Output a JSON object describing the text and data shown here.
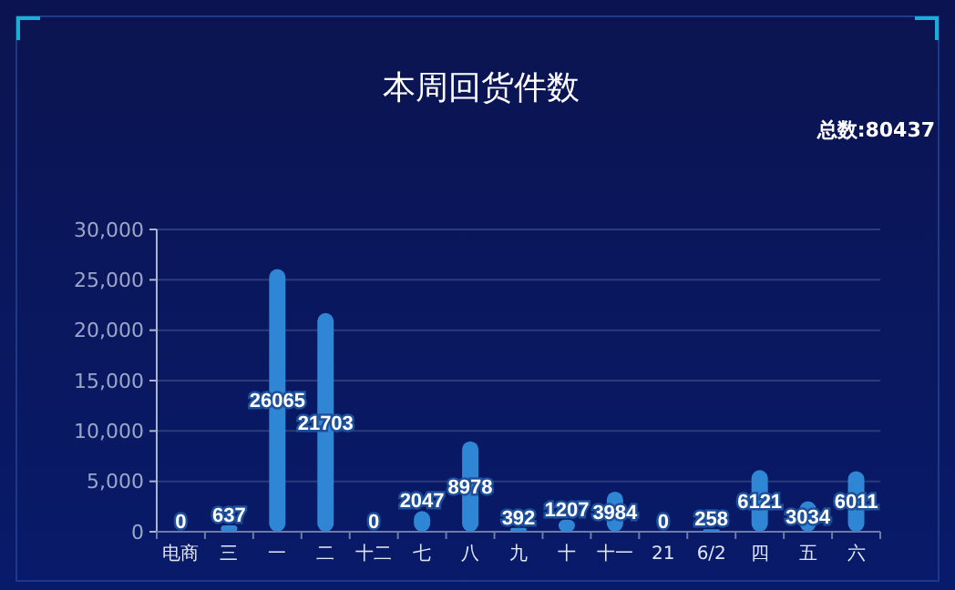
{
  "chart_data": {
    "type": "bar",
    "title": "本周回货件数",
    "annotations": [
      "总数:80437"
    ],
    "categories": [
      "电商",
      "三",
      "一",
      "二",
      "十二",
      "七",
      "八",
      "九",
      "十",
      "十一",
      "21",
      "6/2",
      "四",
      "五",
      "六"
    ],
    "values": [
      0,
      637,
      26065,
      21703,
      0,
      2047,
      8978,
      392,
      1207,
      3984,
      0,
      258,
      6121,
      3034,
      6011
    ],
    "color": "#2e86d4",
    "ylim": [
      0,
      30000
    ],
    "yticks": [
      {
        "value": 0,
        "label": "0"
      },
      {
        "value": 5000,
        "label": "5,000"
      },
      {
        "value": 10000,
        "label": "10,000"
      },
      {
        "value": 15000,
        "label": "15,000"
      },
      {
        "value": 20000,
        "label": "20,000"
      },
      {
        "value": 25000,
        "label": "25,000"
      },
      {
        "value": 30000,
        "label": "30,000"
      }
    ],
    "grid": "y",
    "data_labels": true
  }
}
